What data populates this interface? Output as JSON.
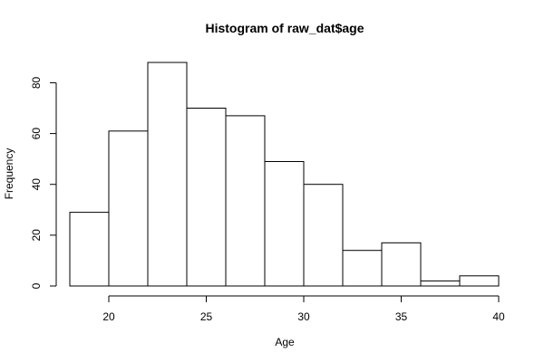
{
  "chart_data": {
    "type": "bar",
    "subtype": "histogram",
    "title": "Histogram of raw_dat$age",
    "xlabel": "Age",
    "ylabel": "Frequency",
    "bins": [
      {
        "x0": 18,
        "x1": 20,
        "count": 29
      },
      {
        "x0": 20,
        "x1": 22,
        "count": 61
      },
      {
        "x0": 22,
        "x1": 24,
        "count": 88
      },
      {
        "x0": 24,
        "x1": 26,
        "count": 70
      },
      {
        "x0": 26,
        "x1": 28,
        "count": 67
      },
      {
        "x0": 28,
        "x1": 30,
        "count": 49
      },
      {
        "x0": 30,
        "x1": 32,
        "count": 40
      },
      {
        "x0": 32,
        "x1": 34,
        "count": 14
      },
      {
        "x0": 34,
        "x1": 36,
        "count": 17
      },
      {
        "x0": 36,
        "x1": 38,
        "count": 2
      },
      {
        "x0": 38,
        "x1": 40,
        "count": 4
      }
    ],
    "x_ticks": [
      20,
      25,
      30,
      35,
      40
    ],
    "y_ticks": [
      0,
      20,
      40,
      60,
      80
    ],
    "xlim": [
      18,
      40
    ],
    "ylim": [
      0,
      88
    ],
    "grid": false,
    "bar_fill": "#ffffff",
    "bar_stroke": "#000000"
  }
}
